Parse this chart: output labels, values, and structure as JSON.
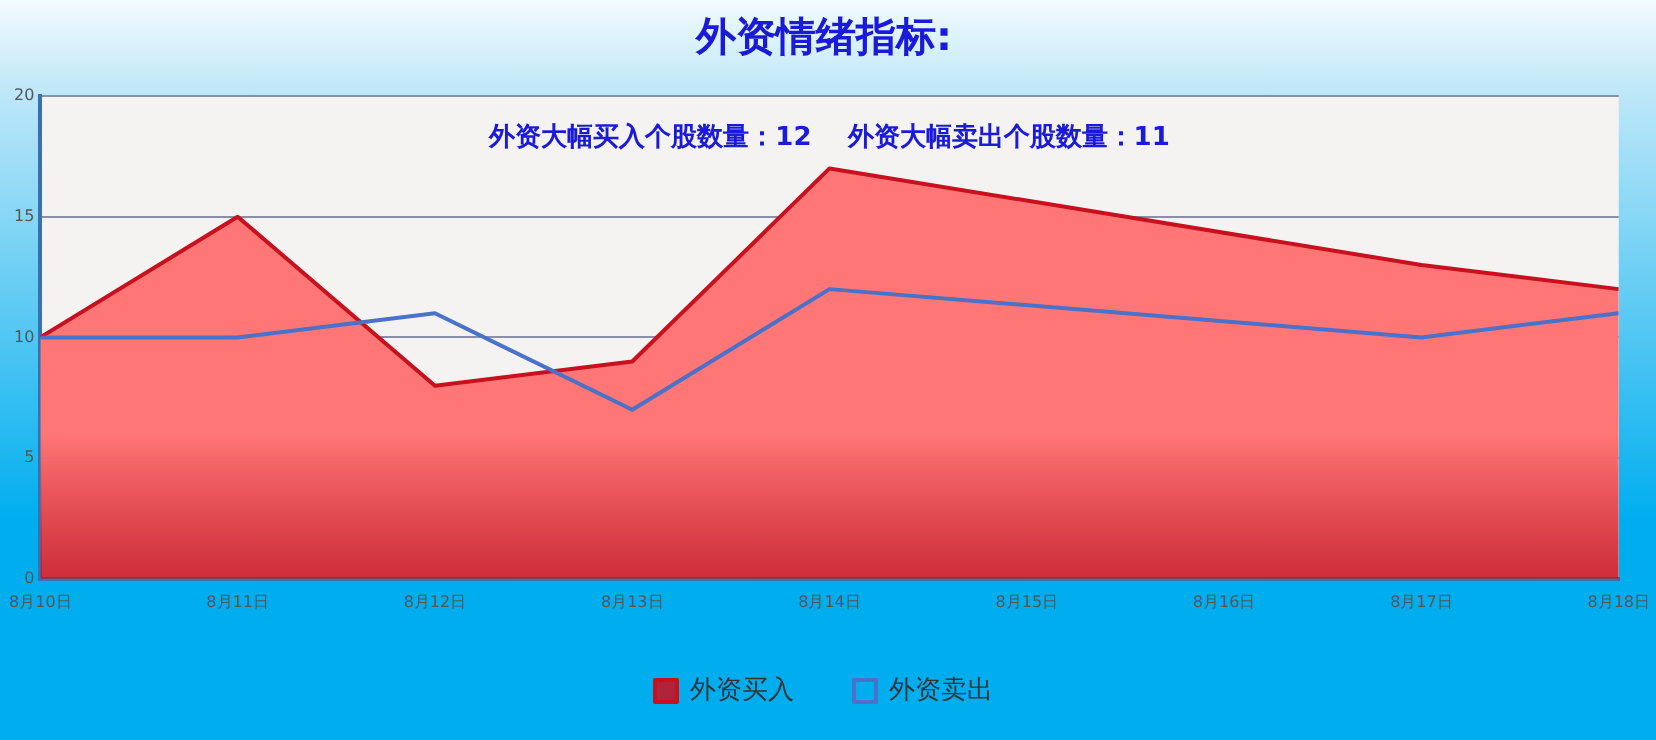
{
  "chart_data": {
    "type": "area",
    "title": "外资情绪指标:",
    "annotations": [
      "外资大幅买入个股数量：12",
      "外资大幅卖出个股数量：11"
    ],
    "x": [
      "--08-10",
      "--08-11",
      "--08-12",
      "--08-13",
      "--08-14",
      "--08-17",
      "--08-18"
    ],
    "xlim": [
      "--08-10",
      "--08-18"
    ],
    "xticks": [
      {
        "value": "--08-10",
        "label": "8月10日"
      },
      {
        "value": "--08-11",
        "label": "8月11日"
      },
      {
        "value": "--08-12",
        "label": "8月12日"
      },
      {
        "value": "--08-13",
        "label": "8月13日"
      },
      {
        "value": "--08-14",
        "label": "8月14日"
      },
      {
        "value": "--08-15",
        "label": "8月15日"
      },
      {
        "value": "--08-16",
        "label": "8月16日"
      },
      {
        "value": "--08-17",
        "label": "8月17日"
      },
      {
        "value": "--08-18",
        "label": "8月18日"
      }
    ],
    "ylim": [
      0,
      20
    ],
    "yticks": [
      0,
      5,
      10,
      15,
      20
    ],
    "series": [
      {
        "name": "外资买入",
        "color": "#c8101e",
        "values": [
          10,
          15,
          8,
          9,
          17,
          13,
          12
        ]
      },
      {
        "name": "外资卖出",
        "type": "line",
        "color": "#4a72c8",
        "values": [
          10,
          10,
          11,
          7,
          12,
          10,
          11
        ]
      }
    ],
    "grid": "y",
    "legend": "bottom",
    "marker": "none",
    "line_style": "solid"
  }
}
